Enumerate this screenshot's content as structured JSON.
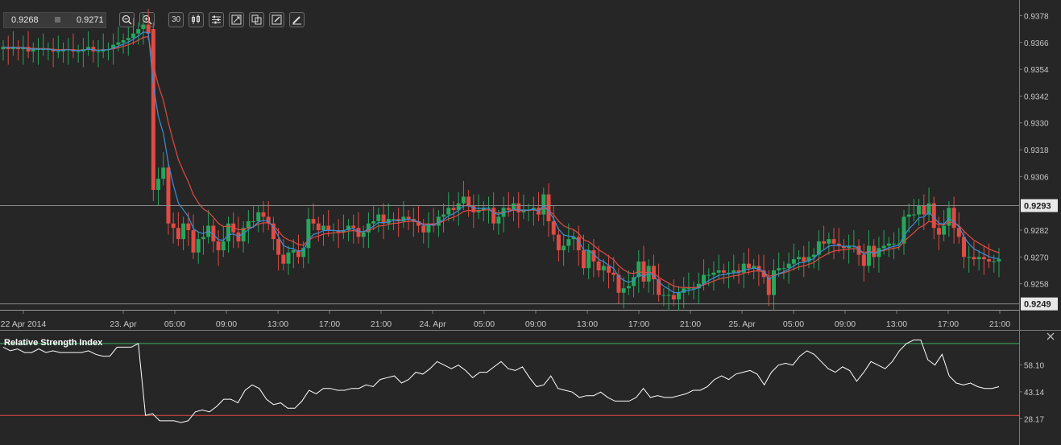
{
  "quote": {
    "bid": "0.9268",
    "ask": "0.9271"
  },
  "toolbar": {
    "period_label": "30",
    "icons": [
      "zoom-out-icon",
      "zoom-in-icon",
      "period-icon",
      "candles-icon",
      "indicators-icon",
      "fit-icon",
      "compare-icon",
      "draw-icon",
      "pencil-icon"
    ]
  },
  "colors": {
    "bull": "#26a65b",
    "bear": "#e04b43",
    "ema_fast": "#3c8fd6",
    "ema_slow": "#e04b43",
    "rsi": "#ffffff",
    "bg": "#262626",
    "grid": "#555555"
  },
  "price_axis": {
    "labels": [
      "0.9378",
      "0.9366",
      "0.9354",
      "0.9342",
      "0.9330",
      "0.9318",
      "0.9306",
      "0.9282",
      "0.9270",
      "0.9258"
    ],
    "tags": [
      {
        "value": 0.9293,
        "label": "0.9293"
      },
      {
        "value": 0.9249,
        "label": "0.9249"
      }
    ]
  },
  "time_axis": {
    "labels": [
      "22 Apr 2014",
      "23. Apr",
      "05:00",
      "09:00",
      "13:00",
      "17:00",
      "21:00",
      "24. Apr",
      "05:00",
      "09:00",
      "13:00",
      "17:00",
      "21:00",
      "25. Apr",
      "05:00",
      "09:00",
      "13:00",
      "17:00",
      "21:00"
    ]
  },
  "rsi": {
    "title": "Relative Strength Index",
    "labels": [
      "58.10",
      "43.14",
      "28.17"
    ],
    "levels": [
      70,
      30
    ],
    "values": [
      68,
      66,
      67,
      65,
      65,
      67,
      65,
      66,
      65,
      65,
      65,
      65,
      66,
      64,
      63,
      63,
      68,
      68,
      68,
      70,
      30,
      31,
      27,
      27,
      27,
      26,
      27,
      32,
      33,
      32,
      35,
      39,
      39,
      37,
      44,
      47,
      45,
      39,
      36,
      37,
      34,
      34,
      38,
      44,
      42,
      45,
      45,
      44,
      44,
      45,
      45,
      47,
      46,
      50,
      51,
      52,
      48,
      50,
      54,
      53,
      56,
      60,
      58,
      56,
      58,
      55,
      51,
      54,
      54,
      57,
      60,
      56,
      55,
      57,
      51,
      46,
      47,
      52,
      45,
      44,
      43,
      40,
      41,
      41,
      43,
      40,
      38,
      38,
      38,
      40,
      45,
      40,
      41,
      40,
      40,
      41,
      42,
      44,
      44,
      46,
      50,
      52,
      50,
      53,
      54,
      55,
      53,
      47,
      54,
      58,
      59,
      58,
      63,
      66,
      64,
      60,
      56,
      54,
      57,
      55,
      49,
      54,
      60,
      58,
      56,
      60,
      66,
      70,
      72,
      72,
      61,
      58,
      64,
      52,
      48,
      47,
      48,
      46,
      45,
      45,
      46
    ]
  },
  "chart_data": {
    "type": "candlestick",
    "symbol_quote": {
      "bid": 0.9268,
      "ask": 0.9271
    },
    "x_start": "22 Apr 2014",
    "interval_minutes": 30,
    "ylim": [
      0.9246,
      0.9385
    ],
    "series_close": [
      0.9364,
      0.9363,
      0.9364,
      0.9363,
      0.9364,
      0.9362,
      0.9363,
      0.9363,
      0.9363,
      0.9363,
      0.9362,
      0.9362,
      0.9363,
      0.9363,
      0.9362,
      0.9362,
      0.9363,
      0.9364,
      0.9362,
      0.9362,
      0.9363,
      0.9363,
      0.9365,
      0.9366,
      0.9367,
      0.9368,
      0.937,
      0.9372,
      0.9374,
      0.937,
      0.93,
      0.9305,
      0.931,
      0.9285,
      0.9283,
      0.9278,
      0.9285,
      0.9282,
      0.9272,
      0.9278,
      0.9279,
      0.9284,
      0.9277,
      0.9273,
      0.9277,
      0.9285,
      0.9281,
      0.9277,
      0.9283,
      0.9286,
      0.9286,
      0.929,
      0.9288,
      0.9285,
      0.9278,
      0.9271,
      0.9267,
      0.9272,
      0.9273,
      0.927,
      0.9274,
      0.9287,
      0.9285,
      0.9282,
      0.9284,
      0.9282,
      0.9282,
      0.9281,
      0.9282,
      0.9284,
      0.9283,
      0.9279,
      0.9281,
      0.9285,
      0.9286,
      0.9289,
      0.9285,
      0.9287,
      0.9287,
      0.9286,
      0.9288,
      0.9287,
      0.9286,
      0.9284,
      0.9281,
      0.9285,
      0.9284,
      0.9288,
      0.9289,
      0.9292,
      0.9291,
      0.9294,
      0.9297,
      0.9293,
      0.929,
      0.9291,
      0.9292,
      0.9292,
      0.9285,
      0.9288,
      0.9292,
      0.9291,
      0.9294,
      0.929,
      0.9291,
      0.9291,
      0.9292,
      0.9289,
      0.9298,
      0.9286,
      0.928,
      0.9273,
      0.9275,
      0.9278,
      0.9279,
      0.9273,
      0.9265,
      0.9273,
      0.9268,
      0.9264,
      0.9266,
      0.9263,
      0.9262,
      0.9254,
      0.9256,
      0.9257,
      0.9261,
      0.9268,
      0.9259,
      0.9266,
      0.926,
      0.9253,
      0.9253,
      0.9253,
      0.9251,
      0.9254,
      0.9256,
      0.9256,
      0.9256,
      0.9258,
      0.9262,
      0.9262,
      0.9263,
      0.9264,
      0.9263,
      0.9263,
      0.9264,
      0.9263,
      0.9267,
      0.9265,
      0.9266,
      0.9264,
      0.9261,
      0.9253,
      0.9264,
      0.9265,
      0.9265,
      0.9267,
      0.9269,
      0.927,
      0.9268,
      0.927,
      0.9271,
      0.9277,
      0.9276,
      0.9278,
      0.9276,
      0.9275,
      0.9274,
      0.9275,
      0.9275,
      0.9271,
      0.9266,
      0.9275,
      0.927,
      0.9274,
      0.9275,
      0.9276,
      0.9276,
      0.9276,
      0.9288,
      0.9289,
      0.9289,
      0.9293,
      0.9289,
      0.9294,
      0.9283,
      0.928,
      0.9284,
      0.9292,
      0.9283,
      0.9279,
      0.927,
      0.927,
      0.9269,
      0.927,
      0.9269,
      0.9268,
      0.9268,
      0.9269
    ]
  }
}
